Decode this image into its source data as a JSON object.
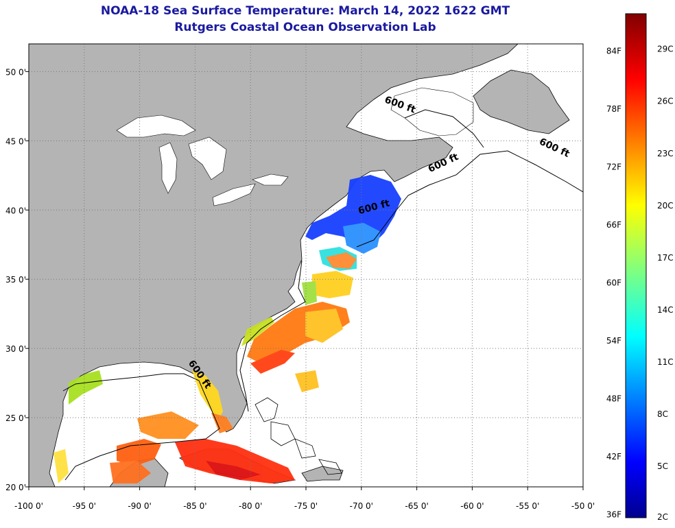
{
  "title_line1": "NOAA-18 Sea Surface Temperature:  March 14, 2022 1622 GMT",
  "title_line2": "Rutgers Coastal Ocean Observation Lab",
  "colors": {
    "land": "#b4b4b4",
    "ocean": "#ffffff",
    "coast": "#000000",
    "grid": "#777777",
    "title": "#1a1aa0"
  },
  "map_extent": {
    "lon_min": -100,
    "lon_max": -50,
    "lat_min": 20,
    "lat_max": 52
  },
  "x_ticks": [
    {
      "lon": -100,
      "label": "-100 0'"
    },
    {
      "lon": -95,
      "label": "-95 0'"
    },
    {
      "lon": -90,
      "label": "-90 0'"
    },
    {
      "lon": -85,
      "label": "-85 0'"
    },
    {
      "lon": -80,
      "label": "-80 0'"
    },
    {
      "lon": -75,
      "label": "-75 0'"
    },
    {
      "lon": -70,
      "label": "-70 0'"
    },
    {
      "lon": -65,
      "label": "-65 0'"
    },
    {
      "lon": -60,
      "label": "-60 0'"
    },
    {
      "lon": -55,
      "label": "-55 0'"
    },
    {
      "lon": -50,
      "label": "-50 0'"
    }
  ],
  "y_ticks": [
    {
      "lat": 20,
      "label": "20 0'"
    },
    {
      "lat": 25,
      "label": "25 0'"
    },
    {
      "lat": 30,
      "label": "30 0'"
    },
    {
      "lat": 35,
      "label": "35 0'"
    },
    {
      "lat": 40,
      "label": "40 0'"
    },
    {
      "lat": 45,
      "label": "45 0'"
    },
    {
      "lat": 50,
      "label": "50 0'"
    }
  ],
  "isobath_labels": [
    {
      "text": "600 ft",
      "lon": -66.6,
      "lat": 47.4,
      "angle": 20
    },
    {
      "text": "600 ft",
      "lon": -52.7,
      "lat": 44.3,
      "angle": 25
    },
    {
      "text": "600 ft",
      "lon": -62.5,
      "lat": 43.2,
      "angle": -25
    },
    {
      "text": "600 ft",
      "lon": -68.8,
      "lat": 40.0,
      "angle": -15
    },
    {
      "text": "600 ft",
      "lon": -84.8,
      "lat": 28.0,
      "angle": 55
    }
  ],
  "colorbar": {
    "min_c": 2,
    "max_c": 31,
    "f_labels": [
      "84F",
      "78F",
      "72F",
      "66F",
      "60F",
      "54F",
      "48F",
      "42F",
      "36F"
    ],
    "f_values": [
      84,
      78,
      72,
      66,
      60,
      54,
      48,
      42,
      36
    ],
    "c_labels": [
      "29C",
      "26C",
      "23C",
      "20C",
      "17C",
      "14C",
      "11C",
      "8C",
      "5C",
      "2C"
    ],
    "c_values": [
      29,
      26,
      23,
      20,
      17,
      14,
      11,
      8,
      5,
      2
    ]
  }
}
